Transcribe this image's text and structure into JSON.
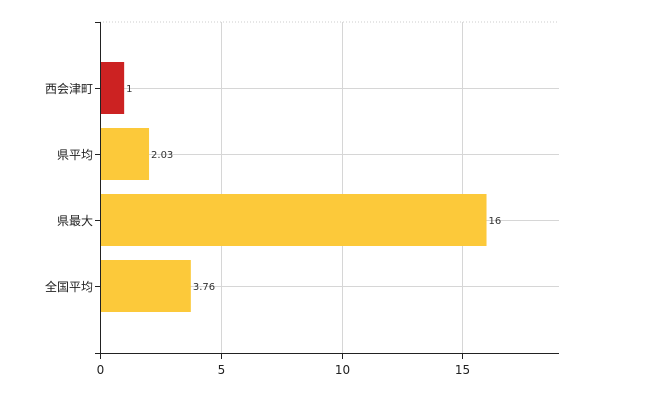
{
  "chart_data": {
    "type": "bar",
    "orientation": "horizontal",
    "title": "",
    "xlabel": "",
    "ylabel": "",
    "categories": [
      "西会津町",
      "県平均",
      "県最大",
      "全国平均"
    ],
    "values": [
      1,
      2.03,
      16,
      3.76
    ],
    "value_labels": [
      "1",
      "2.03",
      "16",
      "3.76"
    ],
    "bar_colors": [
      "#cc2222",
      "#fcc93a",
      "#fcc93a",
      "#fcc93a"
    ],
    "xlim": [
      0,
      19
    ],
    "xticks": [
      0,
      5,
      10,
      15
    ],
    "xtick_labels": [
      "0",
      "5",
      "10",
      "15"
    ],
    "grid": true,
    "legend": "none"
  }
}
